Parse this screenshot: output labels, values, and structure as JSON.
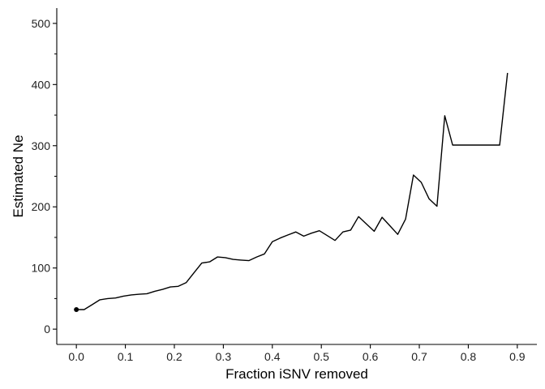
{
  "chart_data": {
    "type": "line",
    "xlabel": "Fraction iSNV removed",
    "ylabel": "Estimated Ne",
    "xlim": [
      -0.04,
      0.94
    ],
    "ylim": [
      -25,
      525
    ],
    "grid": false,
    "x_ticks": [
      0.0,
      0.1,
      0.2,
      0.3,
      0.4,
      0.5,
      0.6,
      0.7,
      0.8,
      0.9
    ],
    "x_tick_labels": [
      "0.0",
      "0.1",
      "0.2",
      "0.3",
      "0.4",
      "0.5",
      "0.6",
      "0.7",
      "0.8",
      "0.9"
    ],
    "y_ticks": [
      0,
      100,
      200,
      300,
      400,
      500
    ],
    "y_tick_labels": [
      "0",
      "100",
      "200",
      "300",
      "400",
      "500"
    ],
    "y_minor_ticks": [
      50,
      150,
      250,
      350,
      450
    ],
    "series": [
      {
        "color": "#000000",
        "x": [
          0.0,
          0.016,
          0.032,
          0.048,
          0.064,
          0.08,
          0.096,
          0.112,
          0.128,
          0.144,
          0.16,
          0.176,
          0.192,
          0.208,
          0.224,
          0.24,
          0.256,
          0.272,
          0.288,
          0.304,
          0.32,
          0.336,
          0.352,
          0.368,
          0.384,
          0.4,
          0.416,
          0.432,
          0.448,
          0.464,
          0.48,
          0.496,
          0.512,
          0.528,
          0.544,
          0.56,
          0.576,
          0.592,
          0.608,
          0.624,
          0.64,
          0.656,
          0.672,
          0.688,
          0.704,
          0.72,
          0.736,
          0.752,
          0.768,
          0.784,
          0.8,
          0.816,
          0.832,
          0.848,
          0.864,
          0.88
        ],
        "y": [
          32,
          32,
          40,
          48,
          50,
          51,
          54,
          56,
          57,
          58,
          62,
          65,
          69,
          70,
          76,
          92,
          108,
          110,
          118,
          117,
          114,
          113,
          112,
          118,
          123,
          143,
          149,
          154,
          159,
          152,
          157,
          161,
          153,
          145,
          159,
          162,
          184,
          172,
          160,
          183,
          169,
          155,
          180,
          252,
          240,
          213,
          201,
          349,
          301,
          301,
          301,
          301,
          301,
          301,
          301,
          419
        ]
      }
    ],
    "start_point": {
      "x": 0.0,
      "y": 32
    }
  }
}
